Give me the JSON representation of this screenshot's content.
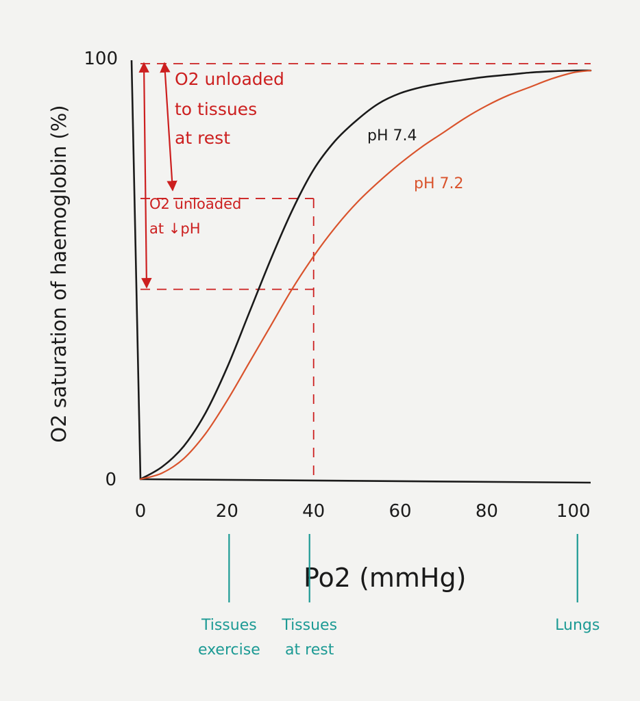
{
  "chart_data": {
    "type": "line",
    "title": "",
    "xlabel": "Po2 (mmHg)",
    "ylabel": "O2 saturation of haemoglobin (%)",
    "xlim": [
      0,
      104
    ],
    "ylim": [
      0,
      100
    ],
    "x_ticks": [
      "0",
      "20",
      "40",
      "60",
      "80",
      "100"
    ],
    "y_ticks": [
      "0",
      "100"
    ],
    "grid": false,
    "series": [
      {
        "name": "pH 7.4",
        "color": "#1a1a1a",
        "x": [
          0,
          5,
          10,
          15,
          20,
          25,
          30,
          35,
          40,
          45,
          50,
          55,
          60,
          65,
          70,
          75,
          80,
          85,
          90,
          95,
          100,
          104
        ],
        "y": [
          0,
          3,
          8,
          16,
          27,
          40,
          53,
          65,
          75,
          82,
          87,
          91,
          93.5,
          95,
          96,
          96.8,
          97.5,
          98,
          98.5,
          98.8,
          99,
          99
        ]
      },
      {
        "name": "pH 7.2",
        "color": "#d9532c",
        "x": [
          0,
          5,
          10,
          15,
          20,
          25,
          30,
          35,
          40,
          45,
          50,
          55,
          60,
          65,
          70,
          75,
          80,
          85,
          90,
          95,
          100,
          104
        ],
        "y": [
          0,
          1.5,
          5,
          11,
          19,
          28,
          37,
          46,
          54,
          61,
          67,
          72,
          76.5,
          80.5,
          84,
          87.5,
          90.5,
          93,
          95,
          97,
          98.5,
          99
        ]
      }
    ],
    "annotations": {
      "unloaded_rest": [
        "O2 unloaded",
        "to tissues",
        "at rest"
      ],
      "unloaded_ph": [
        "O2 unloaded",
        "at ↓pH"
      ],
      "reference_lines": {
        "po2": 40,
        "saturations": [
          100,
          68,
          46
        ]
      }
    },
    "markers": [
      {
        "x": 20,
        "lines": [
          "Tissues",
          "exercise"
        ]
      },
      {
        "x": 40,
        "lines": [
          "Tissues",
          "at rest"
        ]
      },
      {
        "x": 100,
        "lines": [
          "Lungs"
        ]
      }
    ],
    "colors": {
      "ink": "#1a1a1a",
      "annotation": "#cc1f1f",
      "marker": "#1c9a94",
      "curve_low_ph": "#d9532c"
    }
  }
}
